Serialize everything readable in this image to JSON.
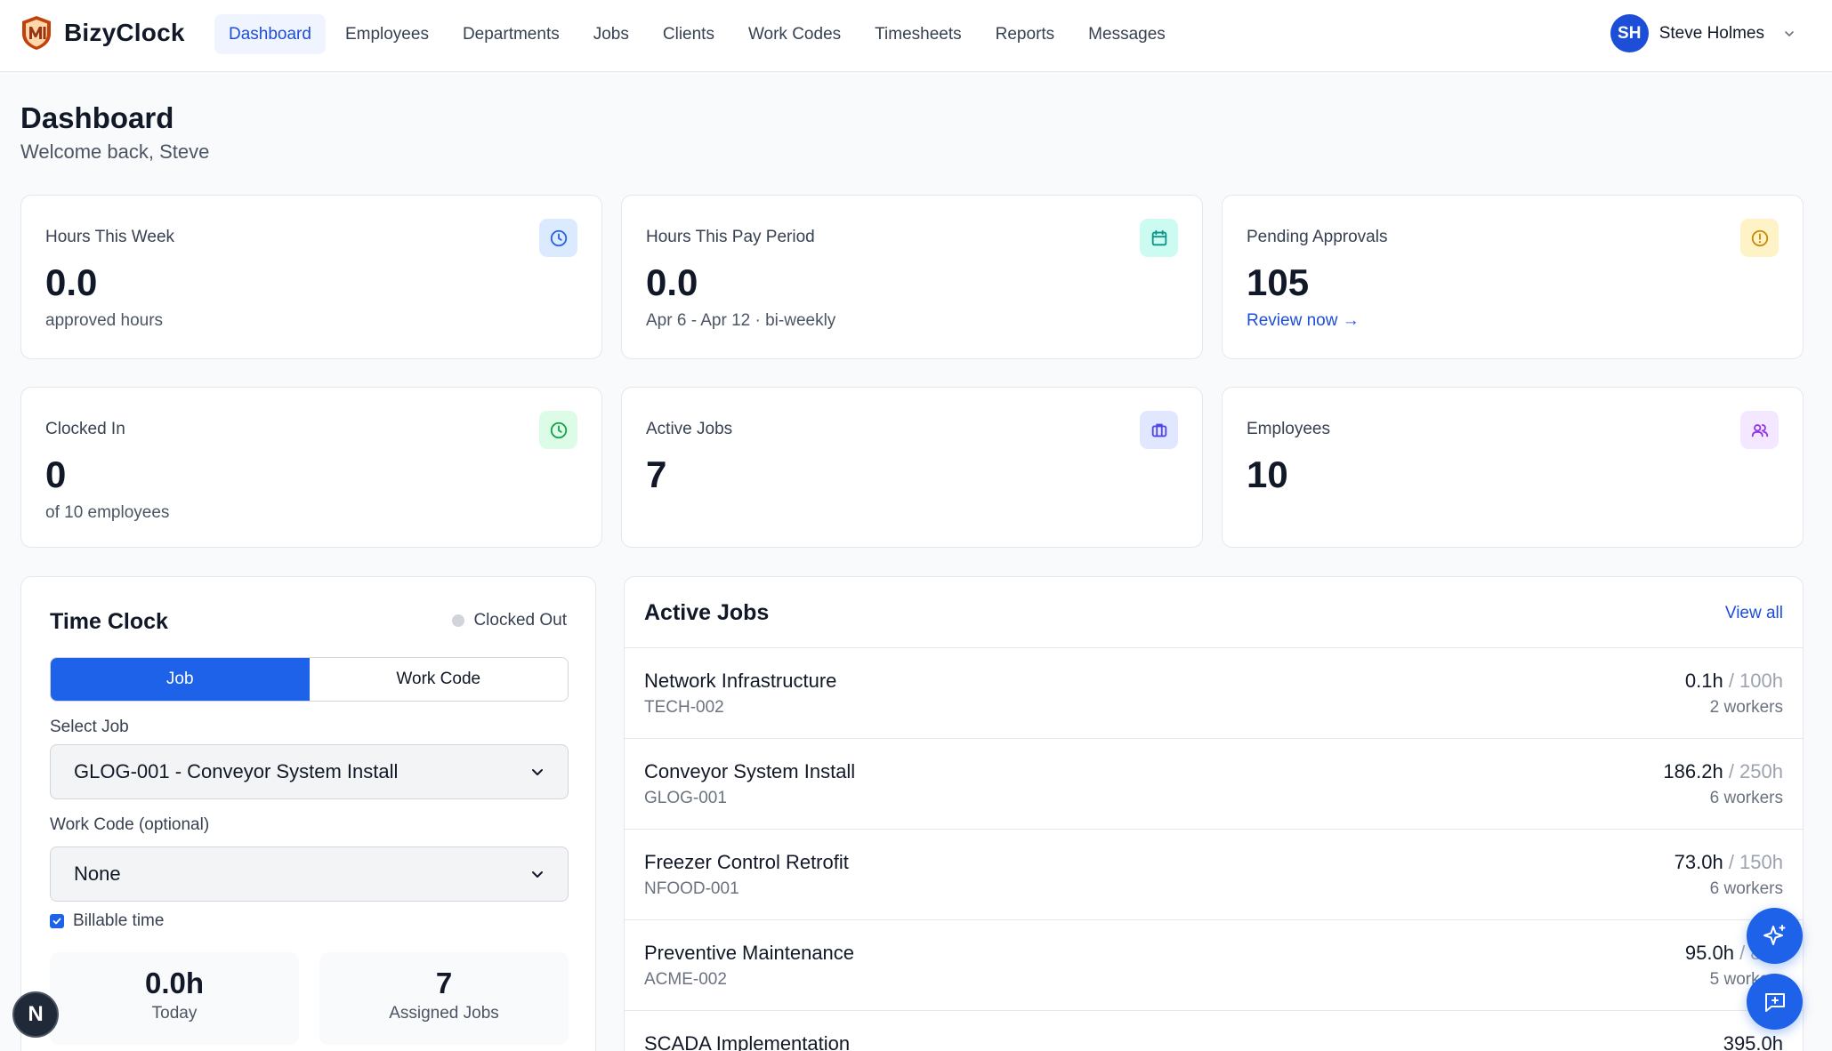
{
  "app": {
    "name": "BizyClock"
  },
  "nav": {
    "items": [
      "Dashboard",
      "Employees",
      "Departments",
      "Jobs",
      "Clients",
      "Work Codes",
      "Timesheets",
      "Reports",
      "Messages"
    ],
    "active": "Dashboard"
  },
  "user": {
    "initials": "SH",
    "name": "Steve Holmes"
  },
  "header": {
    "title": "Dashboard",
    "subtitle": "Welcome back, Steve"
  },
  "stats": [
    {
      "label": "Hours This Week",
      "value": "0.0",
      "sub": "approved hours",
      "icon": "clock-icon",
      "color": "#2563eb",
      "bg": "#dbeafe"
    },
    {
      "label": "Hours This Pay Period",
      "value": "0.0",
      "sub": "Apr 6 - Apr 12 · bi-weekly",
      "icon": "calendar-icon",
      "color": "#0d9488",
      "bg": "#ccfbf1"
    },
    {
      "label": "Pending Approvals",
      "value": "105",
      "sub": "Review now →",
      "icon": "alert-icon",
      "color": "#ca8a04",
      "bg": "#fef3c7"
    },
    {
      "label": "Clocked In",
      "value": "0",
      "sub": "of 10 employees",
      "icon": "clock-icon",
      "color": "#16a34a",
      "bg": "#dcfce7"
    },
    {
      "label": "Active Jobs",
      "value": "7",
      "sub": "",
      "icon": "briefcase-icon",
      "color": "#4f46e5",
      "bg": "#e0e7ff"
    },
    {
      "label": "Employees",
      "value": "10",
      "sub": "",
      "icon": "users-icon",
      "color": "#9333ea",
      "bg": "#f3e8ff"
    }
  ],
  "time_clock": {
    "title": "Time Clock",
    "status": "Clocked Out",
    "tabs": [
      "Job",
      "Work Code"
    ],
    "active_tab": "Job",
    "job_label": "Select Job",
    "job_value": "GLOG-001 - Conveyor System Install",
    "work_code_label": "Work Code (optional)",
    "work_code_value": "None",
    "billable_label": "Billable time",
    "billable_checked": true,
    "today_value": "0.0h",
    "today_label": "Today",
    "assigned_value": "7",
    "assigned_label": "Assigned Jobs"
  },
  "active_jobs": {
    "title": "Active Jobs",
    "view_all": "View all",
    "rows": [
      {
        "name": "Network Infrastructure",
        "code": "TECH-002",
        "hours": "0.1h",
        "total": " / 100h",
        "workers": "2 workers"
      },
      {
        "name": "Conveyor System Install",
        "code": "GLOG-001",
        "hours": "186.2h",
        "total": " / 250h",
        "workers": "6 workers"
      },
      {
        "name": "Freezer Control Retrofit",
        "code": "NFOOD-001",
        "hours": "73.0h",
        "total": " / 150h",
        "workers": "6 workers"
      },
      {
        "name": "Preventive Maintenance",
        "code": "ACME-002",
        "hours": "95.0h",
        "total": " / 80h",
        "workers": "5 workers"
      },
      {
        "name": "SCADA Implementation",
        "code": "",
        "hours": "395.0h",
        "total": "",
        "workers": ""
      }
    ]
  },
  "dev_badge": "N"
}
